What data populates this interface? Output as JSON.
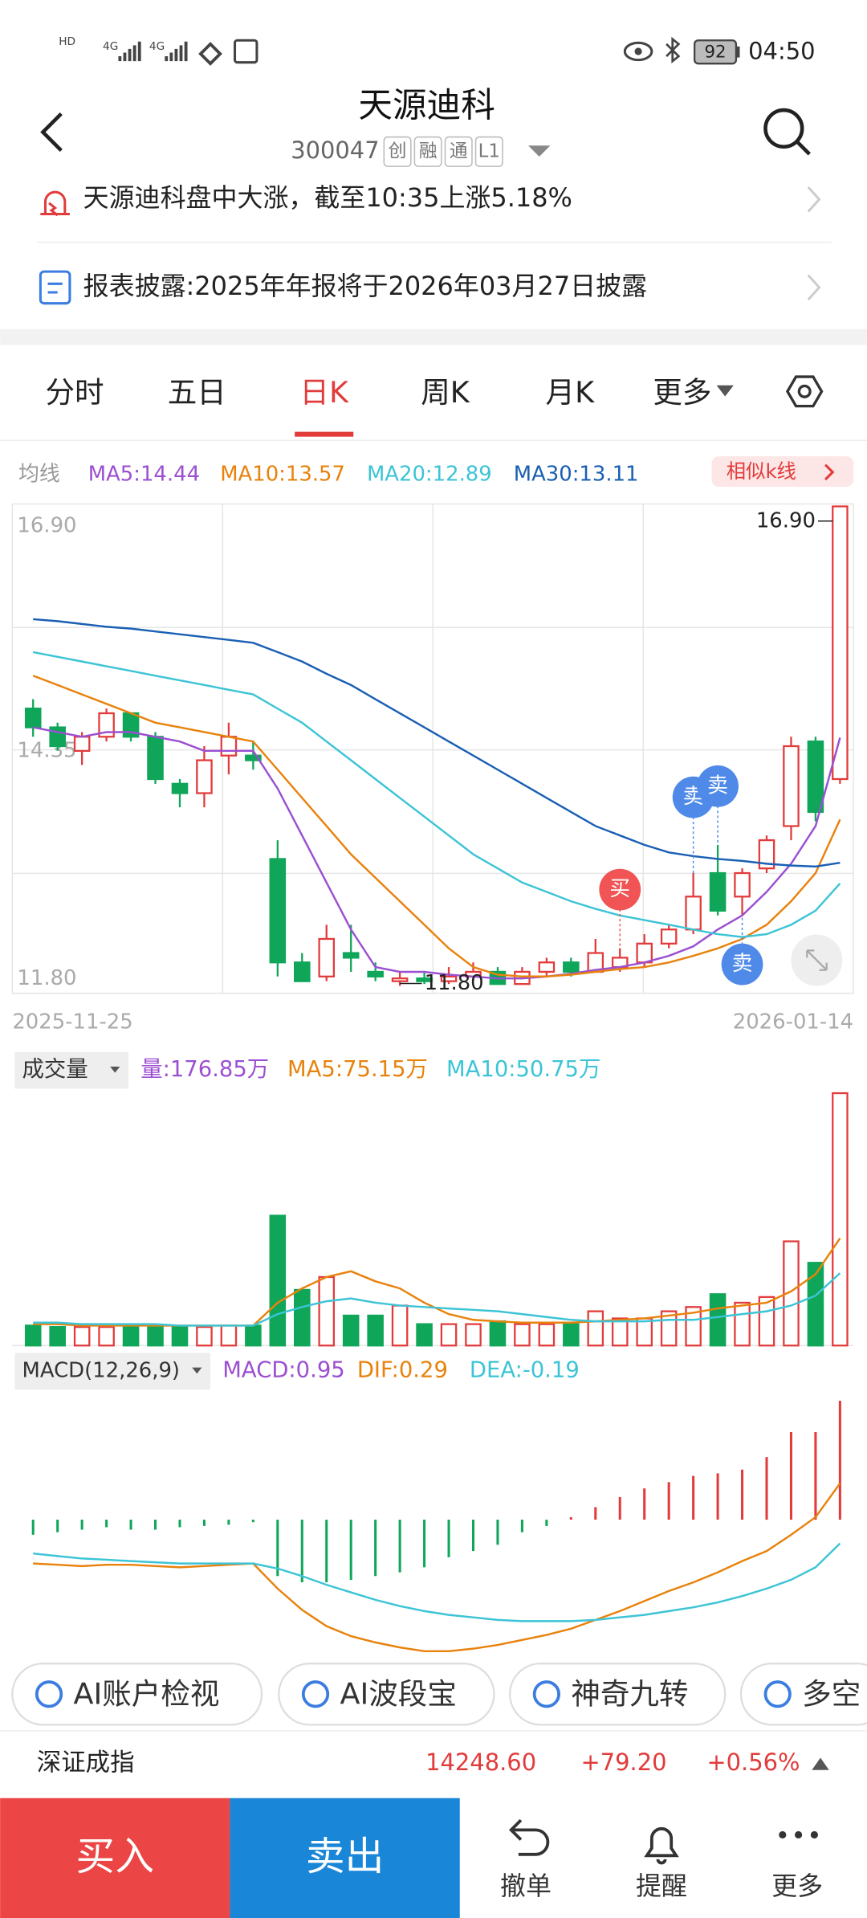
{
  "status_bar": {
    "signal_labels": [
      "HD",
      "4G",
      "4G"
    ],
    "battery": "92",
    "time": "04:50"
  },
  "header": {
    "title": "天源迪科",
    "code": "300047",
    "tags": [
      "创",
      "融",
      "通",
      "L1"
    ]
  },
  "notices": [
    "天源迪科盘中大涨，截至10:35上涨5.18%",
    "报表披露:2025年年报将于2026年03月27日披露"
  ],
  "tabs": {
    "items": [
      "分时",
      "五日",
      "日K",
      "周K",
      "月K",
      "更多"
    ],
    "active": 2
  },
  "similar_k": "相似k线",
  "chart_data": [
    {
      "type": "candlestick",
      "legend_title": "均线",
      "up_color": "#e23b3b",
      "down_color": "#0fa659",
      "ylim": [
        11.8,
        16.9
      ],
      "yticks": [
        {
          "value": 16.9,
          "label": "16.90"
        },
        {
          "value": 14.35,
          "label": "14.35"
        },
        {
          "value": 11.8,
          "label": "11.80"
        }
      ],
      "x_labels": [
        "2025-11-25",
        "2026-01-14"
      ],
      "candles": [
        {
          "open": 14.75,
          "close": 14.55,
          "high": 14.85,
          "low": 14.45
        },
        {
          "open": 14.55,
          "close": 14.35,
          "high": 14.6,
          "low": 14.3
        },
        {
          "open": 14.3,
          "close": 14.45,
          "high": 14.5,
          "low": 14.15
        },
        {
          "open": 14.45,
          "close": 14.7,
          "high": 14.75,
          "low": 14.4
        },
        {
          "open": 14.7,
          "close": 14.45,
          "high": 14.7,
          "low": 14.4
        },
        {
          "open": 14.45,
          "close": 14.0,
          "high": 14.5,
          "low": 13.95
        },
        {
          "open": 13.95,
          "close": 13.85,
          "high": 14.0,
          "low": 13.7
        },
        {
          "open": 13.85,
          "close": 14.2,
          "high": 14.35,
          "low": 13.7
        },
        {
          "open": 14.25,
          "close": 14.45,
          "high": 14.6,
          "low": 14.05
        },
        {
          "open": 14.25,
          "close": 14.2,
          "high": 14.4,
          "low": 14.1
        },
        {
          "open": 13.15,
          "close": 12.05,
          "high": 13.35,
          "low": 11.9
        },
        {
          "open": 12.05,
          "close": 11.85,
          "high": 12.15,
          "low": 11.85
        },
        {
          "open": 11.9,
          "close": 12.3,
          "high": 12.45,
          "low": 11.85
        },
        {
          "open": 12.15,
          "close": 12.1,
          "high": 12.45,
          "low": 11.95
        },
        {
          "open": 11.95,
          "close": 11.9,
          "high": 12.05,
          "low": 11.85
        },
        {
          "open": 11.85,
          "close": 11.88,
          "high": 11.95,
          "low": 11.8
        },
        {
          "open": 11.88,
          "close": 11.85,
          "high": 11.95,
          "low": 11.82
        },
        {
          "open": 11.85,
          "close": 11.9,
          "high": 12.0,
          "low": 11.82
        },
        {
          "open": 11.9,
          "close": 11.95,
          "high": 12.05,
          "low": 11.85
        },
        {
          "open": 11.95,
          "close": 11.82,
          "high": 12.0,
          "low": 11.82
        },
        {
          "open": 11.82,
          "close": 11.95,
          "high": 12.0,
          "low": 11.82
        },
        {
          "open": 11.95,
          "close": 12.05,
          "high": 12.1,
          "low": 11.9
        },
        {
          "open": 12.05,
          "close": 11.95,
          "high": 12.1,
          "low": 11.9
        },
        {
          "open": 11.95,
          "close": 12.15,
          "high": 12.3,
          "low": 11.95
        },
        {
          "open": 12.0,
          "close": 12.1,
          "high": 12.2,
          "low": 11.95
        },
        {
          "open": 12.05,
          "close": 12.25,
          "high": 12.35,
          "low": 12.0
        },
        {
          "open": 12.25,
          "close": 12.4,
          "high": 12.45,
          "low": 12.2
        },
        {
          "open": 12.4,
          "close": 12.75,
          "high": 13.0,
          "low": 12.35
        },
        {
          "open": 13.0,
          "close": 12.6,
          "high": 13.3,
          "low": 12.55
        },
        {
          "open": 12.75,
          "close": 13.0,
          "high": 13.05,
          "low": 12.55
        },
        {
          "open": 13.05,
          "close": 13.35,
          "high": 13.4,
          "low": 13.0
        },
        {
          "open": 13.5,
          "close": 14.35,
          "high": 14.45,
          "low": 13.35
        },
        {
          "open": 14.4,
          "close": 13.65,
          "high": 14.45,
          "low": 13.55
        },
        {
          "open": 14.0,
          "close": 16.9,
          "high": 16.9,
          "low": 13.95
        }
      ],
      "series": [
        {
          "name": "MA5",
          "legend_label": "MA5:14.44",
          "color": "#9b4fd1",
          "values": [
            14.55,
            14.5,
            14.45,
            14.5,
            14.5,
            14.45,
            14.4,
            14.3,
            14.3,
            14.3,
            13.9,
            13.4,
            12.9,
            12.4,
            12.0,
            11.95,
            11.95,
            11.92,
            11.9,
            11.88,
            11.88,
            11.9,
            11.93,
            11.97,
            12.0,
            12.05,
            12.12,
            12.22,
            12.4,
            12.55,
            12.8,
            13.1,
            13.5,
            14.44
          ]
        },
        {
          "name": "MA10",
          "legend_label": "MA10:13.57",
          "color": "#e8820c",
          "values": [
            15.1,
            15.0,
            14.9,
            14.8,
            14.7,
            14.6,
            14.55,
            14.5,
            14.45,
            14.4,
            14.1,
            13.8,
            13.5,
            13.2,
            12.95,
            12.7,
            12.45,
            12.2,
            12.0,
            11.92,
            11.9,
            11.9,
            11.92,
            11.95,
            11.98,
            12.0,
            12.05,
            12.12,
            12.2,
            12.3,
            12.45,
            12.7,
            13.0,
            13.57
          ]
        },
        {
          "name": "MA20",
          "legend_label": "MA20:12.89",
          "color": "#3cc4d6",
          "values": [
            15.35,
            15.3,
            15.25,
            15.2,
            15.15,
            15.1,
            15.05,
            15.0,
            14.95,
            14.9,
            14.75,
            14.6,
            14.4,
            14.2,
            14.0,
            13.8,
            13.6,
            13.4,
            13.2,
            13.05,
            12.9,
            12.8,
            12.7,
            12.62,
            12.55,
            12.5,
            12.45,
            12.4,
            12.35,
            12.32,
            12.35,
            12.45,
            12.6,
            12.89
          ]
        },
        {
          "name": "MA30",
          "legend_label": "MA30:13.11",
          "color": "#1a5fb4",
          "values": [
            15.7,
            15.68,
            15.65,
            15.62,
            15.6,
            15.57,
            15.54,
            15.51,
            15.48,
            15.45,
            15.35,
            15.25,
            15.12,
            15.0,
            14.85,
            14.7,
            14.55,
            14.4,
            14.25,
            14.1,
            13.95,
            13.8,
            13.65,
            13.5,
            13.4,
            13.3,
            13.22,
            13.18,
            13.15,
            13.13,
            13.1,
            13.08,
            13.07,
            13.11
          ]
        }
      ],
      "markers": [
        {
          "candle": 24,
          "label": "买",
          "side": "above",
          "color": "#f05454"
        },
        {
          "candle": 27,
          "label": "卖",
          "side": "above",
          "color": "#4f8ae8"
        },
        {
          "candle": 28,
          "label": "卖",
          "side": "above",
          "color": "#4f8ae8"
        },
        {
          "candle": 29,
          "label": "卖",
          "side": "below",
          "color": "#4f8ae8"
        }
      ],
      "high_label": {
        "candle": 33,
        "value": 16.9,
        "label": "16.90"
      },
      "low_label": {
        "candle": 15,
        "value": 11.8,
        "label": "11.80"
      }
    },
    {
      "type": "volume",
      "title": "成交量",
      "legend_label": "量:176.85万",
      "legend_color": "#9b4fd1",
      "ylim": [
        0,
        180
      ],
      "values": [
        14,
        13,
        13,
        13,
        14,
        13,
        13,
        13,
        14,
        14,
        91,
        39,
        48,
        21,
        21,
        28,
        15,
        15,
        15,
        17,
        15,
        15,
        15,
        24,
        19,
        19,
        24,
        27,
        36,
        30,
        34,
        73,
        58,
        176.85
      ],
      "series": [
        {
          "name": "MA5",
          "legend_label": "MA5:75.15万",
          "color": "#e8820c",
          "values": [
            15,
            15,
            14,
            14,
            14,
            14,
            14,
            14,
            14,
            14,
            30,
            40,
            48,
            52,
            45,
            40,
            30,
            22,
            18,
            17,
            16,
            16,
            16,
            17,
            18,
            19,
            21,
            23,
            26,
            28,
            30,
            38,
            50,
            75.15
          ]
        },
        {
          "name": "MA10",
          "legend_label": "MA10:50.75万",
          "color": "#3cc4d6",
          "values": [
            16,
            16,
            15,
            15,
            15,
            15,
            14,
            14,
            14,
            14,
            22,
            27,
            31,
            33,
            30,
            28,
            27,
            26,
            25,
            24,
            22,
            20,
            18,
            17,
            17,
            17,
            18,
            18,
            20,
            22,
            24,
            28,
            35,
            50.75
          ]
        }
      ]
    },
    {
      "type": "macd",
      "title": "MACD(12,26,9)",
      "legend_label": "MACD:0.95",
      "legend_color": "#9b4fd1",
      "ylim": [
        -1.1,
        1.0
      ],
      "values": [
        -0.12,
        -0.1,
        -0.08,
        -0.06,
        -0.08,
        -0.08,
        -0.06,
        -0.05,
        -0.04,
        -0.02,
        -0.45,
        -0.5,
        -0.5,
        -0.48,
        -0.45,
        -0.42,
        -0.38,
        -0.3,
        -0.25,
        -0.2,
        -0.1,
        -0.05,
        0.02,
        0.1,
        0.18,
        0.25,
        0.3,
        0.35,
        0.37,
        0.4,
        0.5,
        0.7,
        0.7,
        0.95
      ],
      "series": [
        {
          "name": "DIF",
          "legend_label": "DIF:0.29",
          "color": "#e8820c",
          "values": [
            -0.35,
            -0.36,
            -0.37,
            -0.36,
            -0.36,
            -0.37,
            -0.38,
            -0.37,
            -0.36,
            -0.35,
            -0.55,
            -0.72,
            -0.85,
            -0.93,
            -0.98,
            -1.02,
            -1.05,
            -1.05,
            -1.03,
            -1.0,
            -0.96,
            -0.92,
            -0.87,
            -0.8,
            -0.73,
            -0.65,
            -0.57,
            -0.5,
            -0.42,
            -0.33,
            -0.25,
            -0.12,
            0.02,
            0.29
          ]
        },
        {
          "name": "DEA",
          "legend_label": "DEA:-0.19",
          "color": "#3cc4d6",
          "values": [
            -0.27,
            -0.29,
            -0.31,
            -0.32,
            -0.33,
            -0.34,
            -0.35,
            -0.35,
            -0.35,
            -0.35,
            -0.39,
            -0.45,
            -0.52,
            -0.58,
            -0.64,
            -0.69,
            -0.73,
            -0.76,
            -0.78,
            -0.8,
            -0.81,
            -0.81,
            -0.81,
            -0.8,
            -0.78,
            -0.76,
            -0.73,
            -0.7,
            -0.66,
            -0.61,
            -0.55,
            -0.48,
            -0.38,
            -0.19
          ]
        }
      ]
    }
  ],
  "tools": [
    "AI账户检视",
    "AI波段宝",
    "神奇九转",
    "多空"
  ],
  "index_bar": {
    "name": "深证成指",
    "value": "14248.60",
    "change": "+79.20",
    "percent": "+0.56%"
  },
  "actions": {
    "buy": "买入",
    "sell": "卖出",
    "others": [
      "撤单",
      "提醒",
      "更多"
    ]
  }
}
